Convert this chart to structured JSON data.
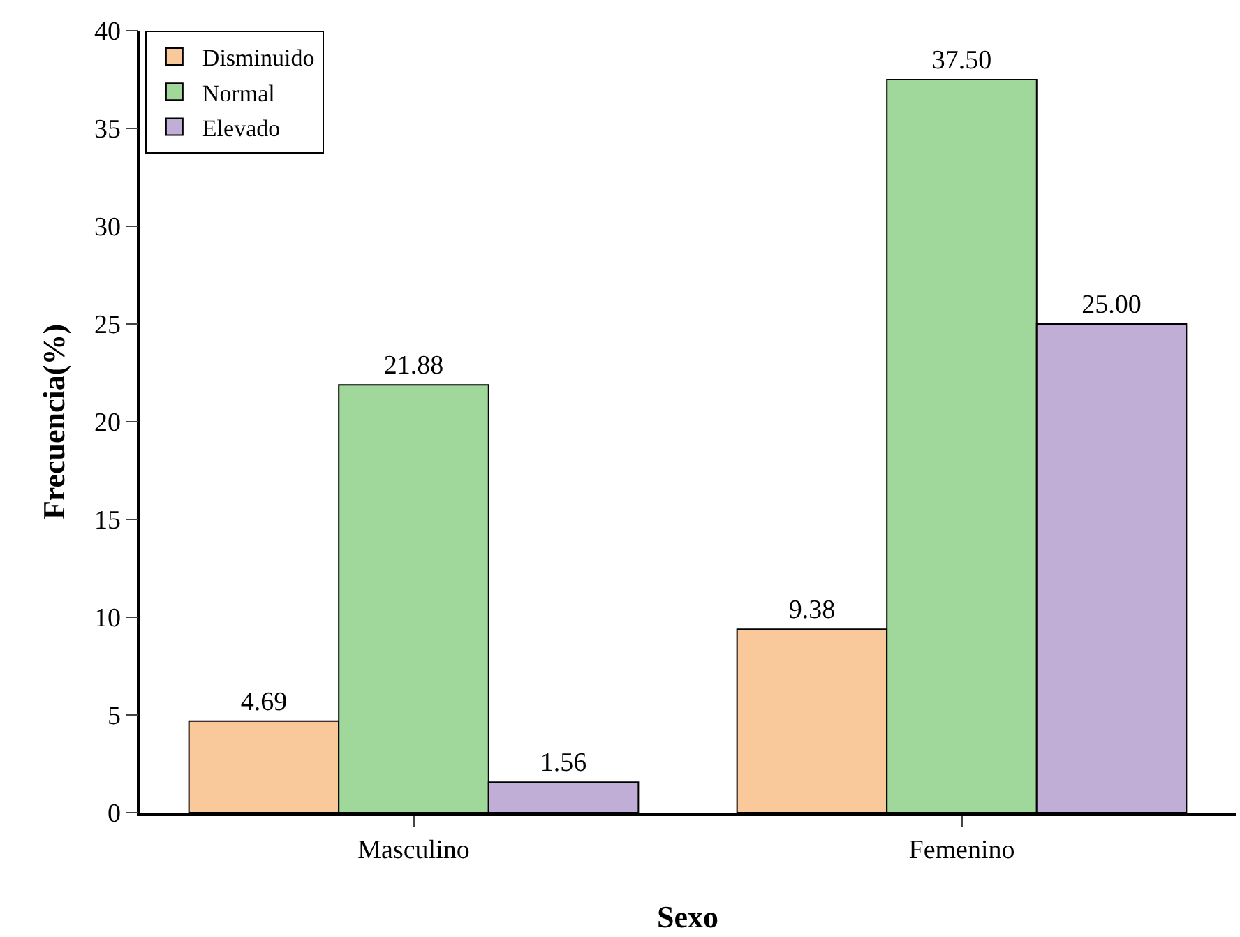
{
  "chart_data": {
    "type": "bar",
    "xlabel": "Sexo",
    "ylabel": "Frecuencia(%)",
    "categories": [
      "Masculino",
      "Femenino"
    ],
    "series": [
      {
        "name": "Disminuido",
        "color": "#f9c89b",
        "values": [
          4.69,
          9.38
        ],
        "value_labels": [
          "4.69",
          "9.38"
        ]
      },
      {
        "name": "Normal",
        "color": "#9fd89a",
        "values": [
          21.88,
          37.5
        ],
        "value_labels": [
          "21.88",
          "37.50"
        ]
      },
      {
        "name": "Elevado",
        "color": "#c0aed6",
        "values": [
          1.56,
          25.0
        ],
        "value_labels": [
          "1.56",
          "25.00"
        ]
      }
    ],
    "ylim": [
      0,
      40
    ],
    "yticks": [
      0,
      5,
      10,
      15,
      20,
      25,
      30,
      35,
      40
    ],
    "grid": false,
    "legend": "top left"
  }
}
